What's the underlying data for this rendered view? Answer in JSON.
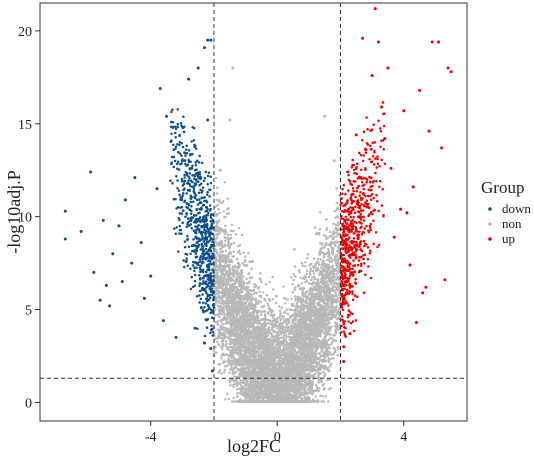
{
  "chart_data": {
    "type": "scatter",
    "title": "",
    "xlabel": "log2FC",
    "ylabel": "-log10adj.P",
    "xlim": [
      -7.5,
      6
    ],
    "ylim": [
      -1.0,
      21.5
    ],
    "x_ticks": [
      -4,
      0,
      4
    ],
    "y_ticks": [
      0,
      5,
      10,
      15,
      20
    ],
    "grid": false,
    "thresholds": {
      "log2fc": [
        -2,
        2
      ],
      "neg_log10_p": 1.3
    },
    "legend": {
      "title": "Group",
      "position": "right",
      "entries": [
        {
          "label": "down",
          "color": "#0d4f8b"
        },
        {
          "label": "non",
          "color": "#b8b8b8"
        },
        {
          "label": "up",
          "color": "#ee0000"
        }
      ]
    },
    "series": [
      {
        "name": "down",
        "color": "#0d4f8b",
        "points": [
          [
            -6.7,
            10.3
          ],
          [
            -6.7,
            8.8
          ],
          [
            -6.2,
            9.2
          ],
          [
            -5.9,
            12.4
          ],
          [
            -5.8,
            7.0
          ],
          [
            -5.6,
            5.5
          ],
          [
            -5.5,
            9.8
          ],
          [
            -5.4,
            6.3
          ],
          [
            -5.3,
            5.2
          ],
          [
            -5.2,
            8.0
          ],
          [
            -5.0,
            9.5
          ],
          [
            -4.9,
            6.5
          ],
          [
            -4.8,
            10.9
          ],
          [
            -4.6,
            7.5
          ],
          [
            -4.5,
            12.1
          ],
          [
            -4.3,
            8.6
          ],
          [
            -4.2,
            5.6
          ],
          [
            -4.0,
            6.8
          ],
          [
            -3.8,
            11.5
          ],
          [
            -3.7,
            16.9
          ],
          [
            -3.6,
            4.4
          ],
          [
            -3.5,
            15.4
          ],
          [
            -3.3,
            14.8
          ],
          [
            -3.2,
            3.5
          ],
          [
            -3.0,
            13.0
          ],
          [
            -2.8,
            17.4
          ],
          [
            -2.7,
            12.6
          ],
          [
            -2.6,
            13.8
          ],
          [
            -2.5,
            18.0
          ],
          [
            -2.4,
            10.4
          ],
          [
            -2.4,
            5.1
          ],
          [
            -2.3,
            19.1
          ],
          [
            -2.2,
            19.5
          ],
          [
            -2.1,
            19.5
          ],
          [
            -2.2,
            15.2
          ],
          [
            -2.1,
            2.9
          ],
          [
            -2.05,
            1.7
          ],
          [
            -2.3,
            3.2
          ],
          [
            -2.6,
            4.0
          ]
        ]
      },
      {
        "name": "non",
        "color": "#b8b8b8",
        "points": [
          [
            0.0,
            0.1
          ],
          [
            -0.1,
            0.3
          ],
          [
            0.1,
            0.4
          ],
          [
            -0.2,
            0.8
          ],
          [
            0.2,
            1.0
          ],
          [
            -0.3,
            1.5
          ],
          [
            0.3,
            1.6
          ],
          [
            -0.5,
            2.2
          ],
          [
            0.5,
            2.3
          ],
          [
            -0.7,
            3.0
          ],
          [
            0.7,
            3.1
          ],
          [
            -0.9,
            3.8
          ],
          [
            0.9,
            4.0
          ],
          [
            -1.1,
            4.8
          ],
          [
            1.1,
            5.0
          ],
          [
            -1.3,
            5.9
          ],
          [
            1.3,
            6.0
          ],
          [
            -1.5,
            7.1
          ],
          [
            1.5,
            7.2
          ],
          [
            -1.7,
            8.4
          ],
          [
            1.7,
            8.6
          ],
          [
            -1.9,
            10.1
          ],
          [
            1.9,
            10.4
          ],
          [
            -1.8,
            12.5
          ],
          [
            1.8,
            13.0
          ],
          [
            -1.5,
            15.2
          ],
          [
            1.5,
            15.4
          ],
          [
            -1.4,
            18.0
          ]
        ]
      },
      {
        "name": "up",
        "color": "#ee0000",
        "points": [
          [
            2.1,
            2.2
          ],
          [
            2.1,
            3.0
          ],
          [
            2.3,
            3.7
          ],
          [
            2.2,
            8.5
          ],
          [
            2.4,
            11.2
          ],
          [
            2.5,
            14.4
          ],
          [
            2.7,
            19.6
          ],
          [
            2.8,
            13.6
          ],
          [
            3.0,
            17.6
          ],
          [
            3.1,
            21.2
          ],
          [
            3.2,
            19.4
          ],
          [
            3.3,
            15.9
          ],
          [
            3.4,
            14.2
          ],
          [
            3.5,
            18.0
          ],
          [
            3.6,
            12.6
          ],
          [
            3.7,
            8.9
          ],
          [
            3.9,
            10.4
          ],
          [
            4.0,
            15.7
          ],
          [
            4.1,
            10.2
          ],
          [
            4.2,
            7.4
          ],
          [
            4.3,
            11.6
          ],
          [
            4.4,
            4.3
          ],
          [
            4.5,
            16.8
          ],
          [
            4.7,
            6.2
          ],
          [
            4.8,
            14.6
          ],
          [
            4.9,
            19.4
          ],
          [
            5.1,
            19.4
          ],
          [
            5.2,
            13.7
          ],
          [
            5.3,
            6.6
          ],
          [
            5.4,
            18.0
          ],
          [
            5.5,
            17.8
          ],
          [
            4.6,
            5.9
          ]
        ]
      }
    ]
  }
}
